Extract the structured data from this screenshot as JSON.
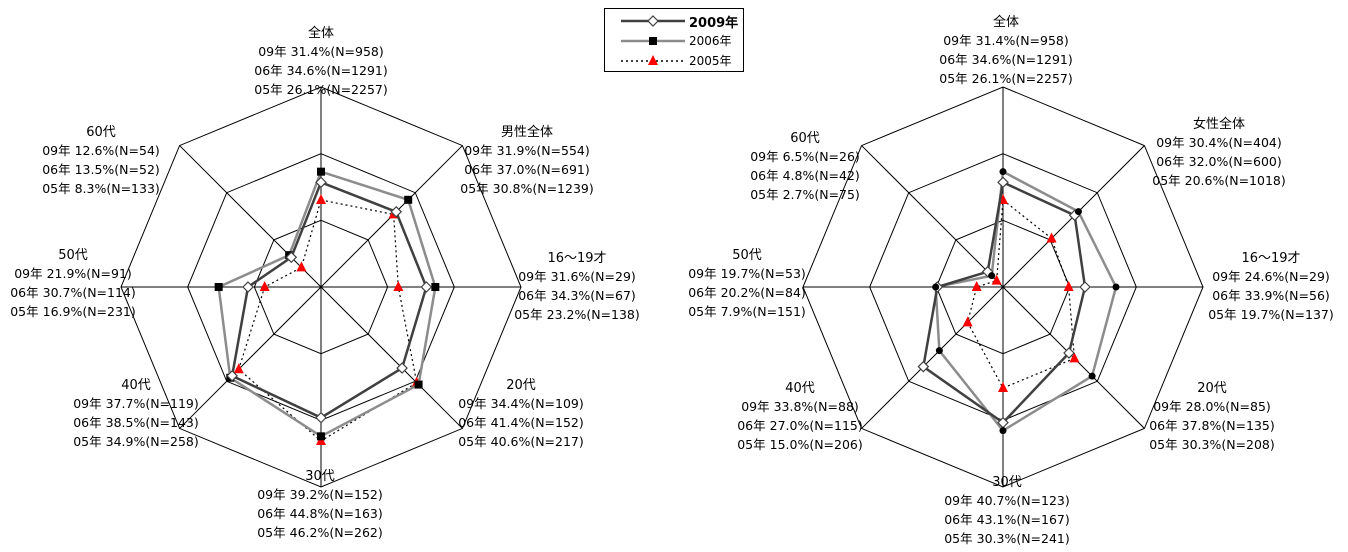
{
  "legend": {
    "items": [
      {
        "label": "2009年",
        "color": "#404040",
        "marker": "diamond-open",
        "dash": "solid",
        "bold": true
      },
      {
        "label": "2006年",
        "color": "#888888",
        "marker": "square",
        "dash": "solid",
        "bold": false
      },
      {
        "label": "2005年",
        "color": "#000000",
        "marker": "triangle-red",
        "dash": "dotted",
        "bold": false
      }
    ]
  },
  "colors": {
    "s2009": "#404040",
    "s2006": "#8c8c8c",
    "s2005": "#000000",
    "s2005_marker": "#ff0000"
  },
  "chart_data": [
    {
      "type": "radar",
      "rlim": [
        0,
        60
      ],
      "categories": [
        {
          "name": "全体",
          "lines": [
            "09年 31.4%(N=958)",
            "06年 34.6%(N=1291)",
            "05年 26.1%(N=2257)"
          ]
        },
        {
          "name": "男性全体",
          "lines": [
            "09年 31.9%(N=554)",
            "06年 37.0%(N=691)",
            "05年 30.8%(N=1239)"
          ]
        },
        {
          "name": "16～19才",
          "lines": [
            "09年 31.6%(N=29)",
            "06年 34.3%(N=67)",
            "05年 23.2%(N=138)"
          ]
        },
        {
          "name": "20代",
          "lines": [
            "09年 34.4%(N=109)",
            "06年 41.4%(N=152)",
            "05年 40.6%(N=217)"
          ]
        },
        {
          "name": "30代",
          "lines": [
            "09年 39.2%(N=152)",
            "06年 44.8%(N=163)",
            "05年 46.2%(N=262)"
          ]
        },
        {
          "name": "40代",
          "lines": [
            "09年 37.7%(N=119)",
            "06年 38.5%(N=143)",
            "05年 34.9%(N=258)"
          ]
        },
        {
          "name": "50代",
          "lines": [
            "09年 21.9%(N=91)",
            "06年 30.7%(N=114)",
            "05年 16.9%(N=231)"
          ]
        },
        {
          "name": "60代",
          "lines": [
            "09年 12.6%(N=54)",
            "06年 13.5%(N=52)",
            "05年 8.3%(N=133)"
          ]
        }
      ],
      "series": [
        {
          "name": "2009年",
          "values": [
            31.4,
            31.9,
            31.6,
            34.4,
            39.2,
            37.7,
            21.9,
            12.6
          ]
        },
        {
          "name": "2006年",
          "values": [
            34.6,
            37.0,
            34.3,
            41.4,
            44.8,
            38.5,
            30.7,
            13.5
          ]
        },
        {
          "name": "2005年",
          "values": [
            26.1,
            30.8,
            23.2,
            40.6,
            46.2,
            34.9,
            16.9,
            8.3
          ]
        }
      ]
    },
    {
      "type": "radar",
      "rlim": [
        0,
        60
      ],
      "categories": [
        {
          "name": "全体",
          "lines": [
            "09年 31.4%(N=958)",
            "06年 34.6%(N=1291)",
            "05年 26.1%(N=2257)"
          ]
        },
        {
          "name": "女性全体",
          "lines": [
            "09年 30.4%(N=404)",
            "06年 32.0%(N=600)",
            "05年 20.6%(N=1018)"
          ]
        },
        {
          "name": "16～19才",
          "lines": [
            "09年 24.6%(N=29)",
            "06年 33.9%(N=56)",
            "05年 19.7%(N=137)"
          ]
        },
        {
          "name": "20代",
          "lines": [
            "09年 28.0%(N=85)",
            "06年 37.8%(N=135)",
            "05年 30.3%(N=208)"
          ]
        },
        {
          "name": "30代",
          "lines": [
            "09年 40.7%(N=123)",
            "06年 43.1%(N=167)",
            "05年 30.3%(N=241)"
          ]
        },
        {
          "name": "40代",
          "lines": [
            "09年 33.8%(N=88)",
            "06年 27.0%(N=115)",
            "05年 15.0%(N=206)"
          ]
        },
        {
          "name": "50代",
          "lines": [
            "09年 19.7%(N=53)",
            "06年 20.2%(N=84)",
            "05年 7.9%(N=151)"
          ]
        },
        {
          "name": "60代",
          "lines": [
            "09年 6.5%(N=26)",
            "06年 4.8%(N=42)",
            "05年 2.7%(N=75)"
          ]
        }
      ],
      "series": [
        {
          "name": "2009年",
          "values": [
            31.4,
            30.4,
            24.6,
            28.0,
            40.7,
            33.8,
            19.7,
            6.5
          ]
        },
        {
          "name": "2006年",
          "values": [
            34.6,
            32.0,
            33.9,
            37.8,
            43.1,
            27.0,
            20.2,
            4.8
          ]
        },
        {
          "name": "2005年",
          "values": [
            26.1,
            20.6,
            19.7,
            30.3,
            30.3,
            15.0,
            7.9,
            2.7
          ]
        }
      ]
    }
  ]
}
